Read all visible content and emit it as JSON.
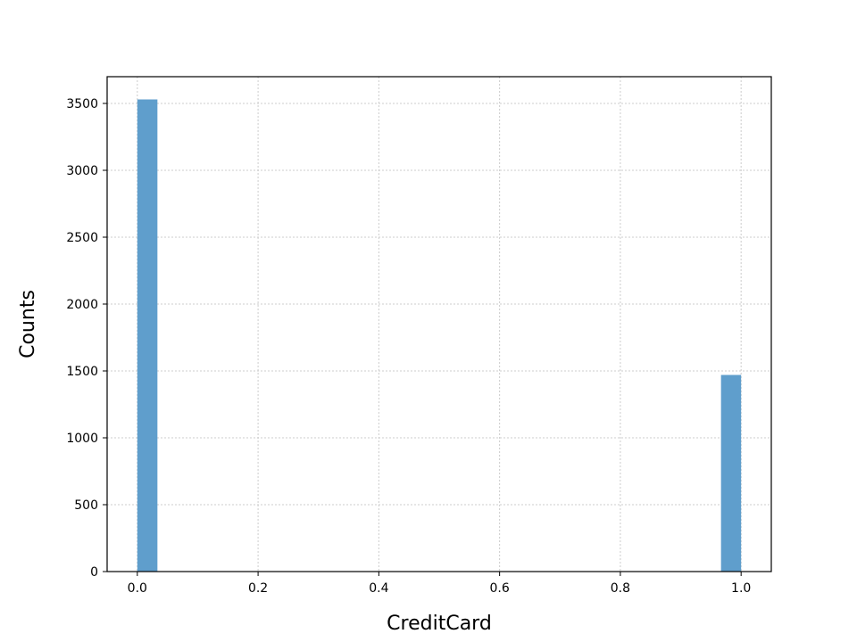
{
  "chart_data": {
    "type": "bar",
    "subtype": "histogram",
    "xlabel": "CreditCard",
    "ylabel": "Counts",
    "xlim": [
      -0.05,
      1.05
    ],
    "ylim": [
      0,
      3700
    ],
    "xticks": [
      0.0,
      0.2,
      0.4,
      0.6,
      0.8,
      1.0
    ],
    "xtick_labels": [
      "0.0",
      "0.2",
      "0.4",
      "0.6",
      "0.8",
      "1.0"
    ],
    "yticks": [
      0,
      500,
      1000,
      1500,
      2000,
      2500,
      3000,
      3500
    ],
    "ytick_labels": [
      "0",
      "500",
      "1000",
      "1500",
      "2000",
      "2500",
      "3000",
      "3500"
    ],
    "grid": true,
    "bar_color": "#5f9ecc",
    "bins": [
      {
        "start": 0.0,
        "end": 0.0333,
        "count": 3530
      },
      {
        "start": 0.9667,
        "end": 1.0,
        "count": 1470
      }
    ]
  }
}
